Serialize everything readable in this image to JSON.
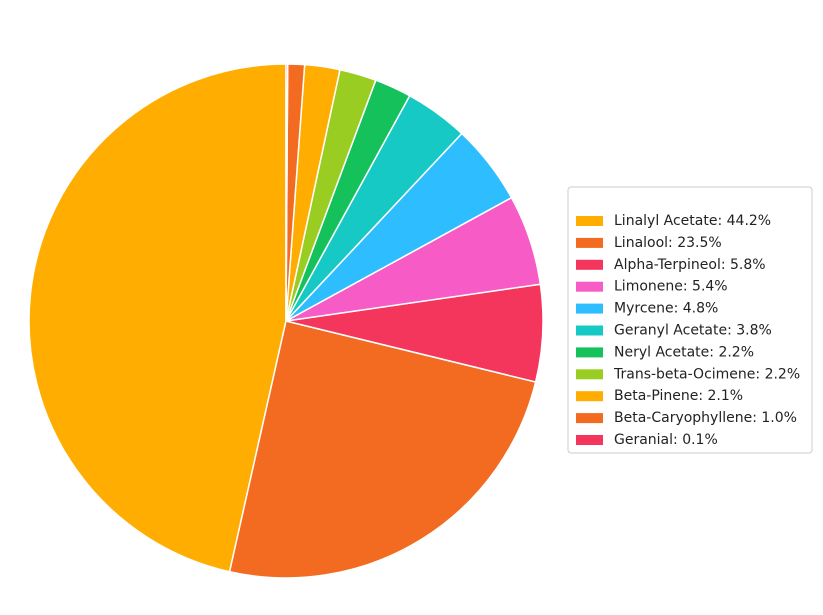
{
  "chart_data": {
    "type": "pie",
    "categories": [
      "Linalyl Acetate: 44.2%",
      "Linalool: 23.5%",
      "Alpha-Terpineol: 5.8%",
      "Limonene: 5.4%",
      "Myrcene: 4.8%",
      "Geranyl Acetate: 3.8%",
      "Neryl Acetate: 2.2%",
      "Trans-beta-Ocimene: 2.2%",
      "Beta-Pinene: 2.1%",
      "Beta-Caryophyllene: 1.0%",
      "Geranial: 0.1%"
    ],
    "values": [
      44.2,
      23.5,
      5.8,
      5.4,
      4.8,
      3.8,
      2.2,
      2.2,
      2.1,
      1.0,
      0.1
    ],
    "colors": [
      "#ffad00",
      "#f26b21",
      "#f5365c",
      "#f75cc6",
      "#2ebdff",
      "#17c9c4",
      "#15c15a",
      "#9acd22",
      "#ffad00",
      "#f26b21",
      "#f5365c"
    ],
    "legend": "right"
  }
}
